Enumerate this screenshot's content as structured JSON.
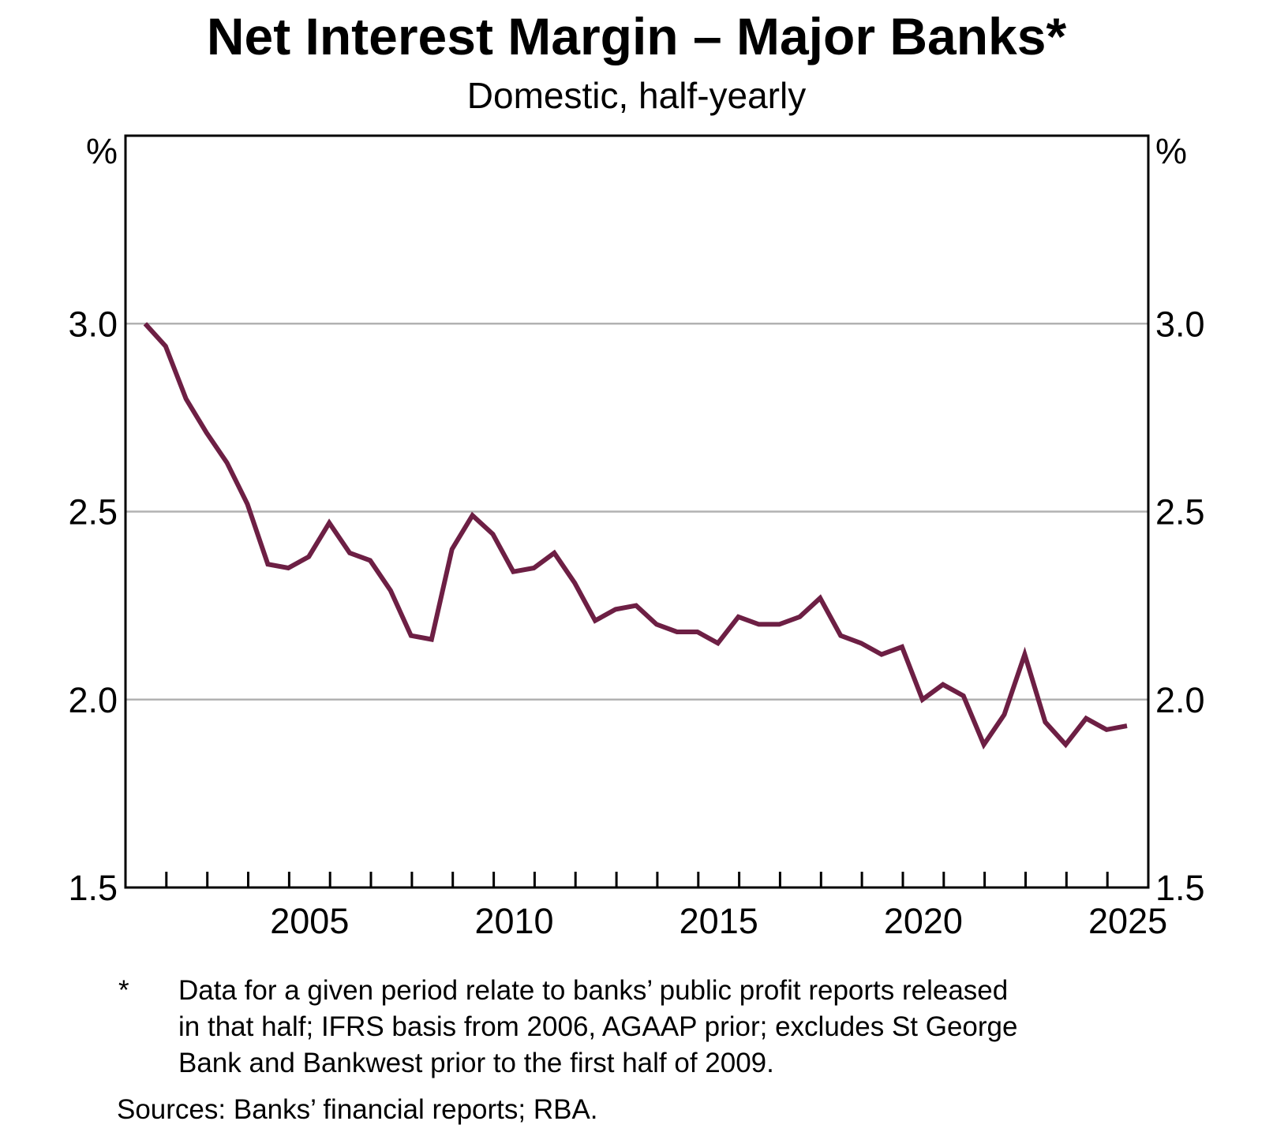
{
  "chart_data": {
    "type": "line",
    "title": "Net Interest Margin – Major Banks*",
    "subtitle": "Domestic, half-yearly",
    "unit_left": "%",
    "unit_right": "%",
    "x_start": 2001.48,
    "x_step": 0.5,
    "xlim": [
      2001,
      2026
    ],
    "ylim": [
      1.5,
      3.5
    ],
    "grid_on": true,
    "grid_values": [
      2.0,
      2.5,
      3.0
    ],
    "ytick_labels": [
      {
        "text": "3.0",
        "value": 3.0
      },
      {
        "text": "2.5",
        "value": 2.5
      },
      {
        "text": "2.0",
        "value": 2.0
      },
      {
        "text": "1.5",
        "value": 1.5
      }
    ],
    "xtick_years_minor": [
      2002,
      2003,
      2004,
      2005,
      2006,
      2007,
      2008,
      2009,
      2010,
      2011,
      2012,
      2013,
      2014,
      2015,
      2016,
      2017,
      2018,
      2019,
      2020,
      2021,
      2022,
      2023,
      2024,
      2025
    ],
    "xtick_labels": [
      {
        "text": "2005",
        "t": 2005.5
      },
      {
        "text": "2010",
        "t": 2010.5
      },
      {
        "text": "2015",
        "t": 2015.5
      },
      {
        "text": "2020",
        "t": 2020.5
      },
      {
        "text": "2025",
        "t": 2025.5
      }
    ],
    "categories": [
      "2001 H1",
      "2001 H2",
      "2002 H1",
      "2002 H2",
      "2003 H1",
      "2003 H2",
      "2004 H1",
      "2004 H2",
      "2005 H1",
      "2005 H2",
      "2006 H1",
      "2006 H2",
      "2007 H1",
      "2007 H2",
      "2008 H1",
      "2008 H2",
      "2009 H1",
      "2009 H2",
      "2010 H1",
      "2010 H2",
      "2011 H1",
      "2011 H2",
      "2012 H1",
      "2012 H2",
      "2013 H1",
      "2013 H2",
      "2014 H1",
      "2014 H2",
      "2015 H1",
      "2015 H2",
      "2016 H1",
      "2016 H2",
      "2017 H1",
      "2017 H2",
      "2018 H1",
      "2018 H2",
      "2019 H1",
      "2019 H2",
      "2020 H1",
      "2020 H2",
      "2021 H1",
      "2021 H2",
      "2022 H1",
      "2022 H2",
      "2023 H1",
      "2023 H2",
      "2024 H1",
      "2024 H2",
      "2025 H1"
    ],
    "series": [
      {
        "name": "Net interest margin – major banks (domestic)",
        "color": "#6D1F44",
        "values": [
          3.0,
          2.94,
          2.8,
          2.71,
          2.63,
          2.52,
          2.36,
          2.35,
          2.38,
          2.47,
          2.39,
          2.37,
          2.29,
          2.17,
          2.16,
          2.4,
          2.49,
          2.44,
          2.34,
          2.35,
          2.39,
          2.31,
          2.21,
          2.24,
          2.25,
          2.2,
          2.18,
          2.18,
          2.15,
          2.22,
          2.2,
          2.2,
          2.22,
          2.27,
          2.17,
          2.15,
          2.12,
          2.14,
          2.0,
          2.04,
          2.01,
          1.88,
          1.96,
          2.12,
          1.94,
          1.88,
          1.95,
          1.92,
          1.93
        ]
      }
    ],
    "line_width": 6,
    "colors": {
      "grid": "#b2b2b2",
      "axis": "#000000",
      "text": "#000000",
      "background": "#ffffff"
    },
    "legend": "none"
  },
  "footnote": {
    "marker": "*",
    "lines": [
      "Data for a given period relate to banks’ public profit reports released",
      "in that half; IFRS basis from 2006, AGAAP prior; excludes St George",
      "Bank and Bankwest prior to the first half of 2009."
    ]
  },
  "footer": {
    "sources": "Sources: Banks’ financial reports; RBA."
  }
}
